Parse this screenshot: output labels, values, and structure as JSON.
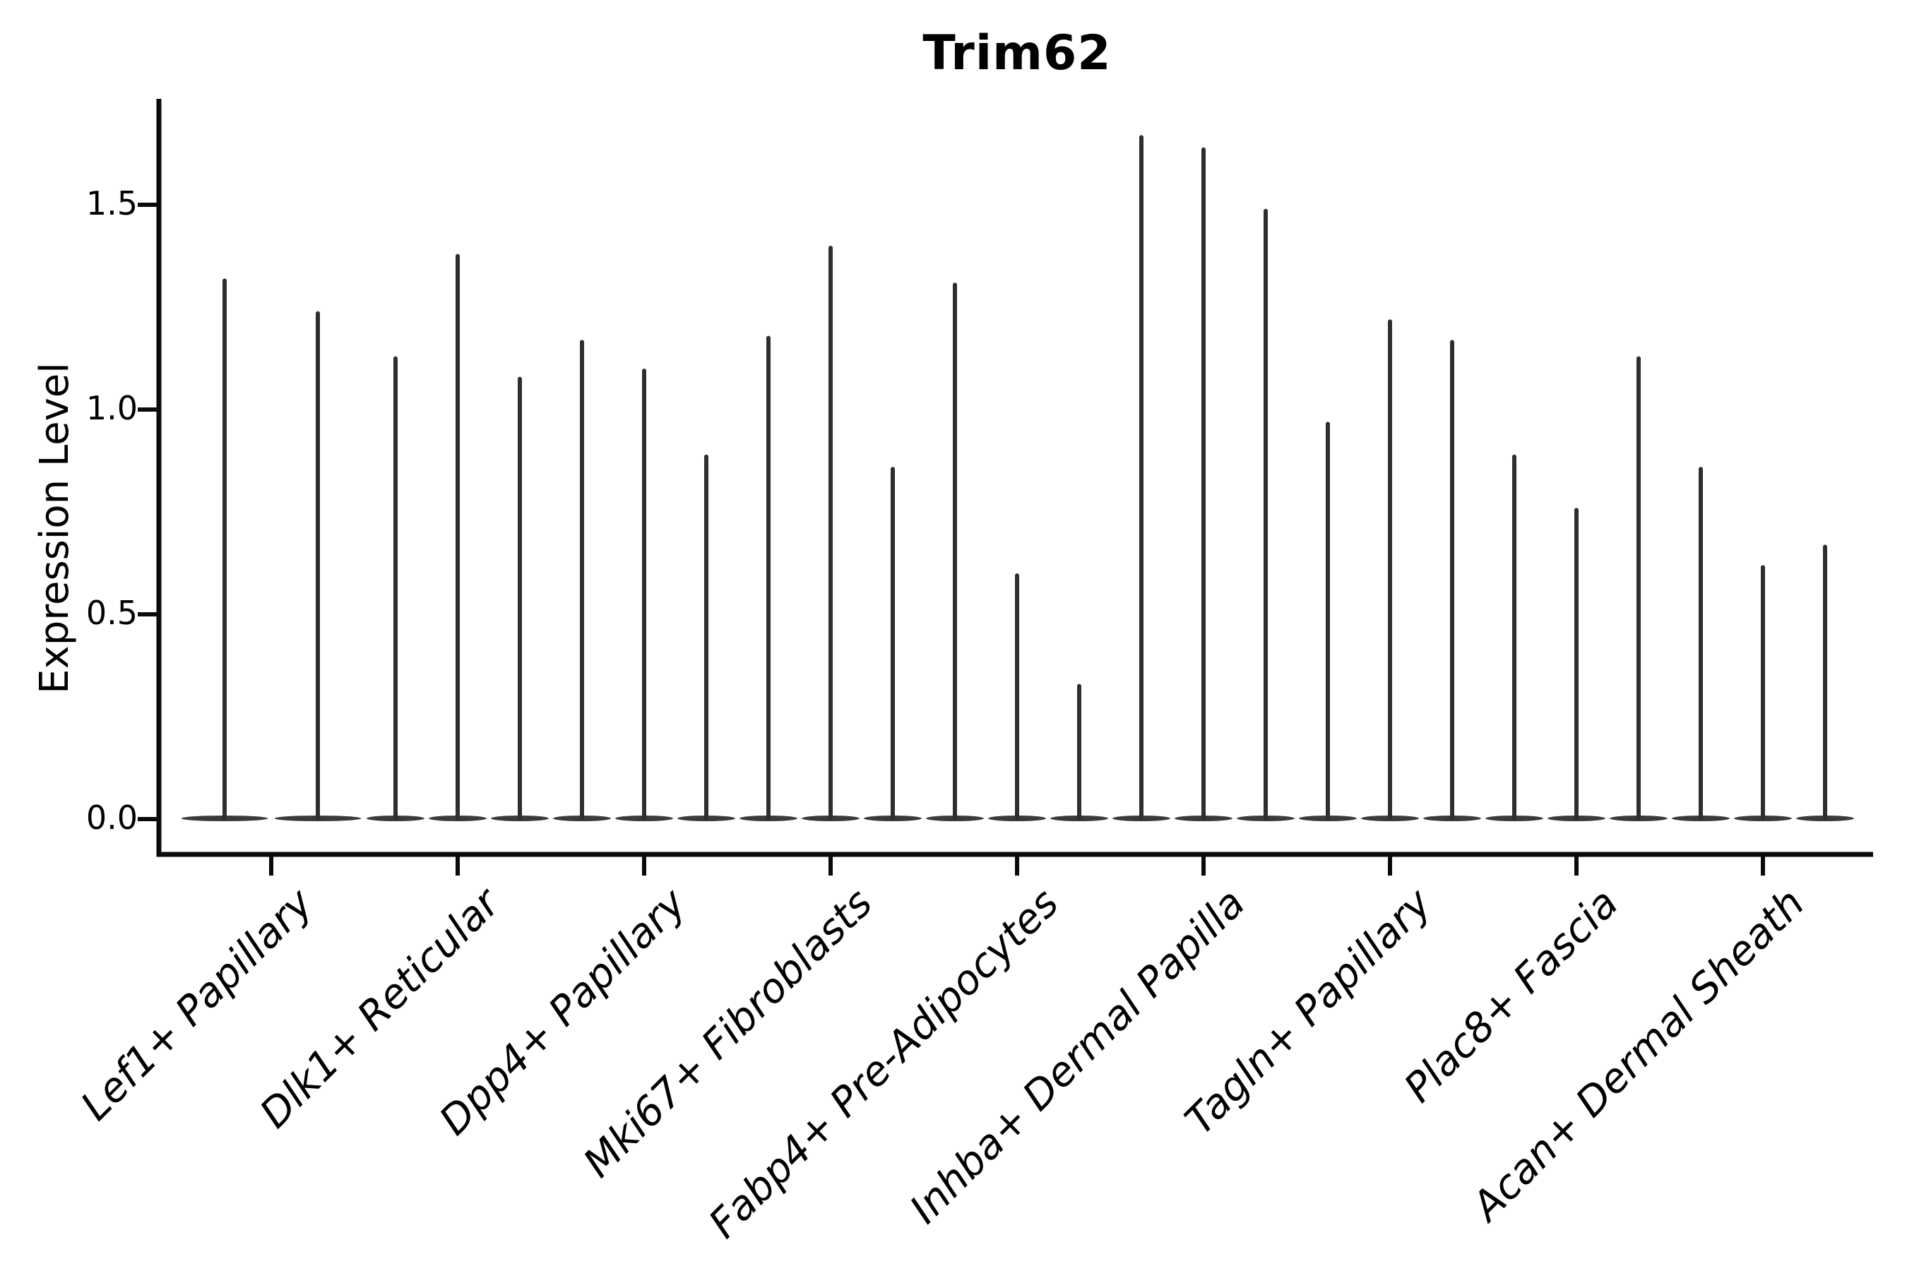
{
  "figure": {
    "background": "#ffffff"
  },
  "chart_data": {
    "type": "violin",
    "title": "Trim62",
    "xlabel": "",
    "ylabel": "Expression Level",
    "ylim": [
      -0.09,
      1.76
    ],
    "yticks": [
      0.0,
      0.5,
      1.0,
      1.5
    ],
    "ytick_labels": [
      "0.0",
      "0.5",
      "1.0",
      "1.5"
    ],
    "grid": false,
    "legend_position": "none",
    "orientation": "vertical",
    "violins_are_narrow_spikes": true,
    "categories": [
      {
        "label": "Lef1+ Papillary",
        "violin_max_values": [
          1.32,
          1.24
        ]
      },
      {
        "label": "Dlk1+ Reticular",
        "violin_max_values": [
          1.13,
          1.38,
          1.08
        ]
      },
      {
        "label": "Dpp4+ Papillary",
        "violin_max_values": [
          1.17,
          1.1,
          0.89
        ]
      },
      {
        "label": "Mki67+ Fibroblasts",
        "violin_max_values": [
          1.18,
          1.4,
          0.86
        ]
      },
      {
        "label": "Fabp4+ Pre-Adipocytes",
        "violin_max_values": [
          1.31,
          0.6,
          0.33
        ]
      },
      {
        "label": "Inhba+ Dermal Papilla",
        "violin_max_values": [
          1.67,
          1.64,
          1.49
        ]
      },
      {
        "label": "Tagln+ Papillary",
        "violin_max_values": [
          0.97,
          1.22,
          1.17
        ]
      },
      {
        "label": "Plac8+ Fascia",
        "violin_max_values": [
          0.89,
          0.76,
          1.13
        ]
      },
      {
        "label": "Acan+ Dermal Sheath",
        "violin_max_values": [
          0.86,
          0.62,
          0.67
        ]
      }
    ],
    "colors": {
      "violin_spike": "#2e2e2e",
      "violin_base": "#3a3a3a",
      "axis": "#0a0a0a",
      "text": "#000000"
    }
  }
}
